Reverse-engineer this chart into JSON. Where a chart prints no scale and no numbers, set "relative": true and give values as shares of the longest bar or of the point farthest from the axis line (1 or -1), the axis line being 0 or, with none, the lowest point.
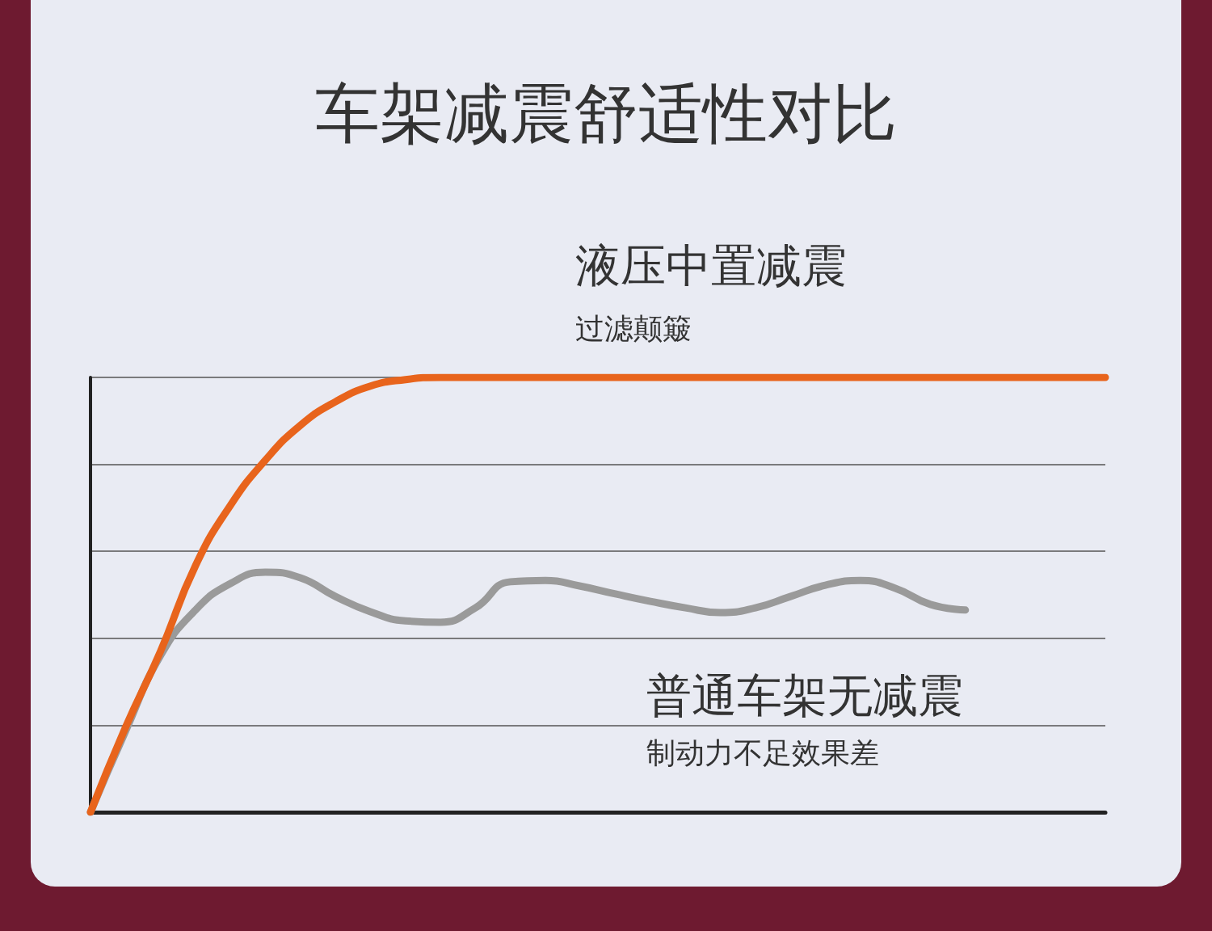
{
  "chart_data": {
    "type": "line",
    "title": "车架减震舒适性对比",
    "relative": true,
    "grid": true,
    "marker": "none",
    "line_style": "solid",
    "categories": [
      null,
      null,
      null,
      null,
      null,
      null,
      null,
      null,
      null,
      null,
      null,
      null,
      null,
      null,
      null,
      null,
      null,
      null,
      null,
      null,
      null,
      null,
      null,
      null,
      null,
      null,
      null,
      null,
      null,
      null
    ],
    "series": [
      {
        "name": "液压中置减震",
        "color": "#e8641c",
        "values": [
          0,
          0.195,
          0.37,
          0.567,
          0.706,
          0.81,
          0.89,
          0.944,
          0.98,
          0.995,
          1,
          1,
          1,
          1,
          1,
          1,
          1,
          1,
          1,
          1,
          1,
          1,
          1,
          1,
          1,
          1,
          1,
          1,
          1,
          1
        ]
      },
      {
        "name": "普通车架无减震",
        "color": "#9a9a9a",
        "values": [
          0,
          0.186,
          0.36,
          0.465,
          0.526,
          0.552,
          0.539,
          0.496,
          0.461,
          0.44,
          0.437,
          0.47,
          0.53,
          0.533,
          0.52,
          0.502,
          0.485,
          0.47,
          0.459,
          0.47,
          0.496,
          0.522,
          0.533,
          0.515,
          0.478,
          0.465,
          null,
          null,
          null,
          null
        ]
      }
    ],
    "annotations": [
      "过滤颠簸",
      "制动力不足效果差"
    ]
  }
}
